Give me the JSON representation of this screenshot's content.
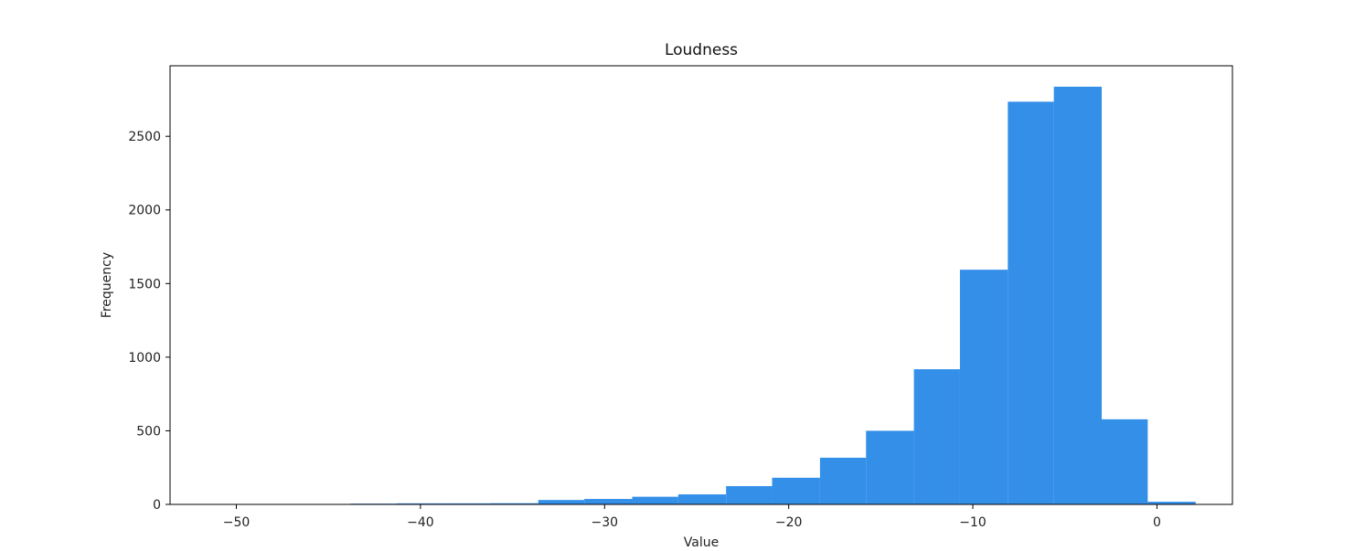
{
  "chart_data": {
    "type": "bar",
    "title": "Loudness",
    "xlabel": "Value",
    "ylabel": "Frequency",
    "bin_edges": [
      -51.5,
      -48.9,
      -46.4,
      -43.8,
      -41.3,
      -38.7,
      -36.2,
      -33.6,
      -31.1,
      -28.5,
      -26.0,
      -23.4,
      -20.9,
      -18.3,
      -15.8,
      -13.2,
      -10.7,
      -8.1,
      -5.6,
      -3.0,
      -0.5,
      2.1
    ],
    "values": [
      1,
      1,
      2,
      5,
      7,
      7,
      8,
      30,
      37,
      52,
      68,
      124,
      181,
      317,
      500,
      918,
      1594,
      2735,
      2837,
      578,
      18
    ],
    "xlim": [
      -53.6,
      4.1
    ],
    "ylim": [
      0,
      2979
    ],
    "xticks": [
      -50,
      -40,
      -30,
      -20,
      -10,
      0
    ],
    "xtick_labels": [
      "−50",
      "−40",
      "−30",
      "−20",
      "−10",
      "0"
    ],
    "yticks": [
      0,
      500,
      1000,
      1500,
      2000,
      2500
    ],
    "ytick_labels": [
      "0",
      "500",
      "1000",
      "1500",
      "2000",
      "2500"
    ],
    "bar_color": "#338fe8",
    "grid": false,
    "legend": false
  }
}
